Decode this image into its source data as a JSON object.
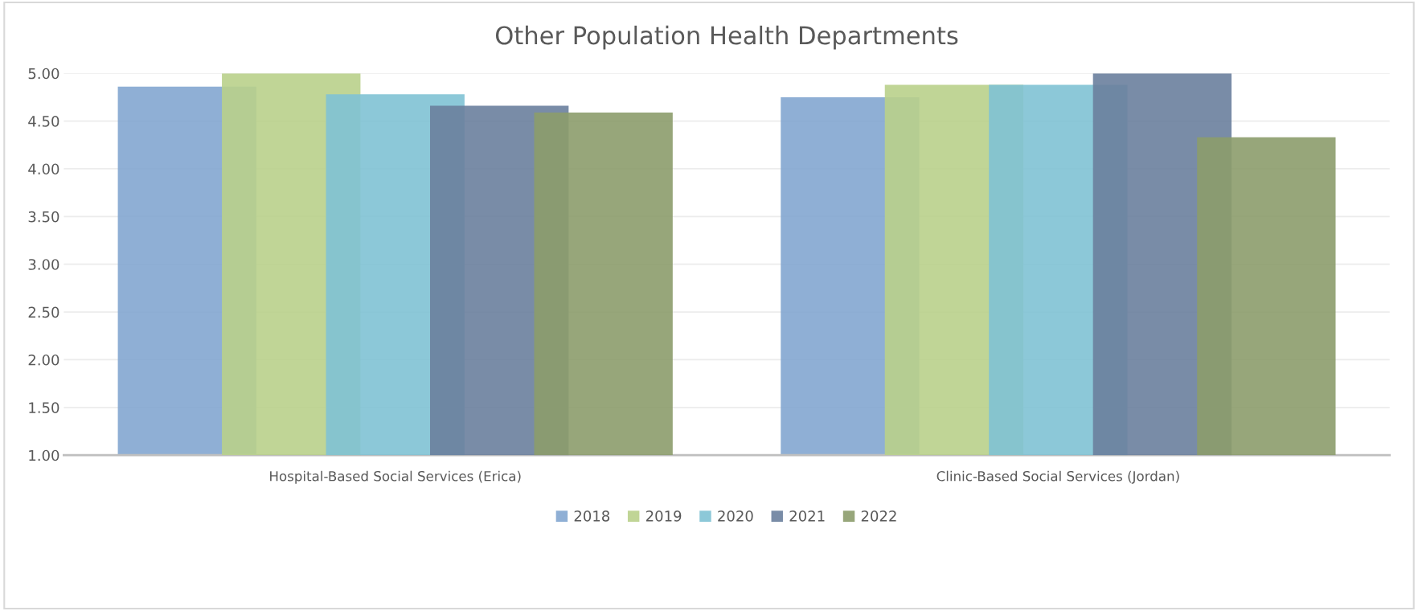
{
  "chart_data": {
    "type": "bar",
    "title": "Other Population Health Departments",
    "categories": [
      "Hospital-Based Social Services (Erica)",
      "Clinic-Based Social Services (Jordan)"
    ],
    "series": [
      {
        "name": "2018",
        "color": "#83a6d0",
        "values": [
          4.86,
          4.75
        ]
      },
      {
        "name": "2019",
        "color": "#b9d08b",
        "values": [
          5.0,
          4.88
        ]
      },
      {
        "name": "2020",
        "color": "#80c2d4",
        "values": [
          4.78,
          4.88
        ]
      },
      {
        "name": "2021",
        "color": "#6a809d",
        "values": [
          4.66,
          5.0
        ]
      },
      {
        "name": "2022",
        "color": "#8c9c6b",
        "values": [
          4.59,
          4.33
        ]
      }
    ],
    "ylim": [
      1,
      5
    ],
    "yticks": [
      {
        "value": 1,
        "label": "1.00"
      },
      {
        "value": 1.5,
        "label": "1.50"
      },
      {
        "value": 2,
        "label": "2.00"
      },
      {
        "value": 2.5,
        "label": "2.50"
      },
      {
        "value": 3,
        "label": "3.00"
      },
      {
        "value": 3.5,
        "label": "3.50"
      },
      {
        "value": 4,
        "label": "4.00"
      },
      {
        "value": 4.5,
        "label": "4.50"
      },
      {
        "value": 5,
        "label": "5.00"
      }
    ],
    "grid": "y",
    "legend": "bottom"
  }
}
